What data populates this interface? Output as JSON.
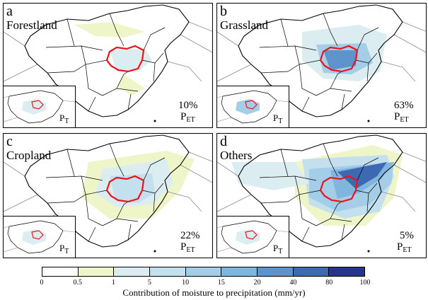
{
  "panels": [
    {
      "letter": "a",
      "cover": "Forestland",
      "percent": "10%",
      "pet_main": "P",
      "pet_sub": "ET",
      "pt_main": "P",
      "pt_sub": "T",
      "intensity": 1
    },
    {
      "letter": "b",
      "cover": "Grassland",
      "percent": "63%",
      "pet_main": "P",
      "pet_sub": "ET",
      "pt_main": "P",
      "pt_sub": "T",
      "intensity": 4
    },
    {
      "letter": "c",
      "cover": "Cropland",
      "percent": "22%",
      "pet_main": "P",
      "pet_sub": "ET",
      "pt_main": "P",
      "pt_sub": "T",
      "intensity": 3
    },
    {
      "letter": "d",
      "cover": "Others",
      "percent": "5%",
      "pet_main": "P",
      "pet_sub": "ET",
      "pt_main": "P",
      "pt_sub": "T",
      "intensity": 2
    }
  ],
  "colorbar": {
    "ticks": [
      "0",
      "0.5",
      "1",
      "5",
      "10",
      "15",
      "20",
      "40",
      "80",
      "100"
    ],
    "colors": [
      "#ffffff",
      "#eef5c8",
      "#dcedf2",
      "#c4e0ef",
      "#a4cde8",
      "#80b6de",
      "#5e93cc",
      "#3d68b2",
      "#28358f"
    ],
    "label": "Contribution of moisture to precipitation (mm/yr)"
  },
  "map_colors": {
    "source_region_outline": "#e8141a",
    "boundary": "#000000",
    "neighbor_boundary": "#8c8c8c"
  }
}
